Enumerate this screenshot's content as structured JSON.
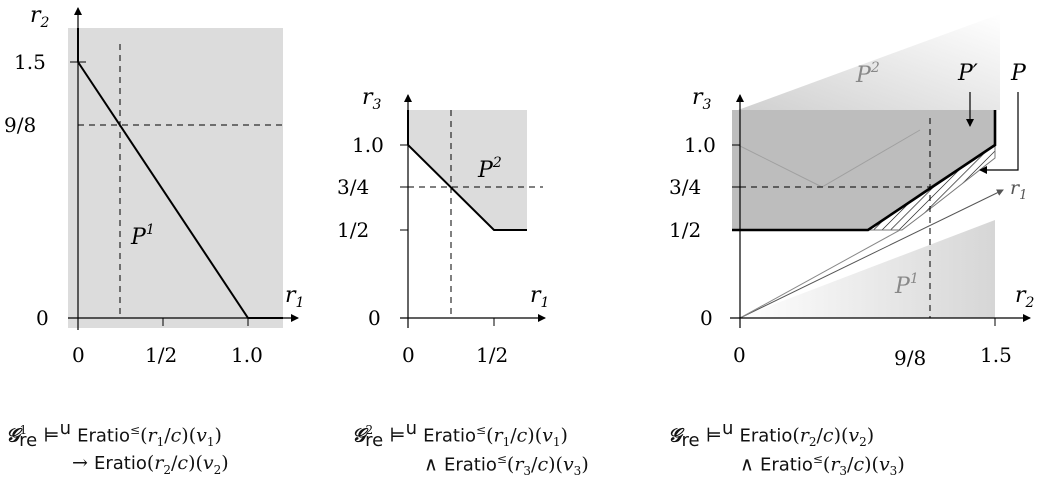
{
  "panels": [
    {
      "title": "",
      "x_axis_label": "r1",
      "y_axis_label": "r2",
      "x_ticks": [
        "0",
        "1/2",
        "1.0"
      ],
      "y_ticks": [
        "0",
        "9/8",
        "1.5"
      ],
      "region_labels": [
        "P1"
      ]
    },
    {
      "title": "",
      "x_axis_label": "r1",
      "y_axis_label": "r3",
      "x_ticks": [
        "0",
        "1/2"
      ],
      "y_ticks": [
        "0",
        "1/2",
        "3/4",
        "1.0"
      ],
      "region_labels": [
        "P2"
      ]
    },
    {
      "title": "",
      "x_axis_label": "r2",
      "y_axis_label": "r3",
      "depth_axis_label": "r1",
      "x_ticks": [
        "0",
        "9/8",
        "1.5"
      ],
      "y_ticks": [
        "0",
        "1/2",
        "3/4",
        "1.0"
      ],
      "region_labels": [
        "P2",
        "P1",
        "P′",
        "P"
      ]
    }
  ],
  "formulas": {
    "f1": {
      "line1": {
        "lhs": "𝒢",
        "sup": "1",
        "sub": "re",
        "models": "⊨",
        "models_sup": "u",
        "op": "Eratio",
        "op_sup": "≤",
        "arg": "(r1/c)(v1)"
      },
      "line2": {
        "connective": "→",
        "op": "Eratio",
        "arg": "(r2/c)(v2)"
      }
    },
    "f2": {
      "line1": {
        "lhs": "𝒢",
        "sup": "2",
        "sub": "re",
        "models": "⊨",
        "models_sup": "u",
        "op": "Eratio",
        "op_sup": "≤",
        "arg": "(r1/c)(v1)"
      },
      "line2": {
        "connective": "∧",
        "op": "Eratio",
        "op_sup": "≤",
        "arg": "(r3/c)(v3)"
      }
    },
    "f3": {
      "line1": {
        "lhs": "𝒢",
        "sub": "re",
        "models": "⊨",
        "models_sup": "u",
        "op": "Eratio",
        "arg": "(r2/c)(v2)"
      },
      "line2": {
        "connective": "∧",
        "op": "Eratio",
        "op_sup": "≤",
        "arg": "(r3/c)(v3)"
      }
    }
  },
  "colors": {
    "region": "#dcdcdc",
    "region_dark": "#bdbdbd",
    "line": "#000000"
  }
}
